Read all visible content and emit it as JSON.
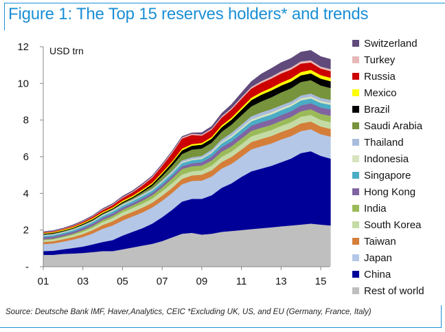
{
  "figure": {
    "title": "Figure 1: The Top 15 reserves holders* and trends",
    "source": "Source: Deutsche Bank IMF, Haver,Analytics, CEIC *Excluding UK, US, and EU (Germany, France, Italy)"
  },
  "chart_data": {
    "type": "area",
    "stacked": true,
    "title": "Figure 1: The Top 15 reserves holders* and trends",
    "ylabel": "USD trn",
    "xlabel": "",
    "ylim": [
      0,
      12
    ],
    "xlim": [
      2001,
      2015.5
    ],
    "y_ticks": [
      0,
      2,
      4,
      6,
      8,
      10,
      12
    ],
    "y_tick_labels": [
      "-",
      "2",
      "4",
      "6",
      "8",
      "10",
      "12"
    ],
    "x_ticks": [
      2001,
      2003,
      2005,
      2007,
      2009,
      2011,
      2013,
      2015
    ],
    "x_tick_labels": [
      "01",
      "03",
      "05",
      "07",
      "09",
      "11",
      "13",
      "15"
    ],
    "grid": false,
    "legend_position": "right",
    "x": [
      2001,
      2001.5,
      2002,
      2002.5,
      2003,
      2003.5,
      2004,
      2004.5,
      2005,
      2005.5,
      2006,
      2006.5,
      2007,
      2007.5,
      2008,
      2008.5,
      2009,
      2009.5,
      2010,
      2010.5,
      2011,
      2011.5,
      2012,
      2012.5,
      2013,
      2013.5,
      2014,
      2014.5,
      2015,
      2015.5
    ],
    "series": [
      {
        "name": "Rest of world",
        "color": "#bfbfbf",
        "values": [
          0.65,
          0.65,
          0.7,
          0.72,
          0.75,
          0.8,
          0.85,
          0.85,
          0.95,
          1.05,
          1.15,
          1.25,
          1.4,
          1.6,
          1.8,
          1.85,
          1.75,
          1.8,
          1.9,
          1.95,
          2.0,
          2.05,
          2.1,
          2.15,
          2.2,
          2.25,
          2.3,
          2.35,
          2.3,
          2.25
        ]
      },
      {
        "name": "China",
        "color": "#000099",
        "values": [
          0.2,
          0.22,
          0.25,
          0.3,
          0.35,
          0.42,
          0.5,
          0.6,
          0.75,
          0.85,
          0.95,
          1.1,
          1.3,
          1.5,
          1.75,
          1.85,
          1.95,
          2.1,
          2.4,
          2.6,
          2.9,
          3.15,
          3.25,
          3.35,
          3.5,
          3.65,
          3.9,
          3.95,
          3.75,
          3.65
        ]
      },
      {
        "name": "Japan",
        "color": "#b4c7e7",
        "values": [
          0.38,
          0.4,
          0.42,
          0.46,
          0.52,
          0.6,
          0.72,
          0.8,
          0.82,
          0.84,
          0.86,
          0.88,
          0.9,
          0.92,
          0.95,
          0.98,
          1.0,
          1.02,
          1.05,
          1.06,
          1.1,
          1.2,
          1.22,
          1.22,
          1.24,
          1.22,
          1.2,
          1.2,
          1.18,
          1.2
        ]
      },
      {
        "name": "Taiwan",
        "color": "#d47e3a",
        "values": [
          0.12,
          0.12,
          0.13,
          0.14,
          0.16,
          0.18,
          0.21,
          0.23,
          0.25,
          0.25,
          0.26,
          0.26,
          0.27,
          0.28,
          0.29,
          0.3,
          0.32,
          0.34,
          0.36,
          0.38,
          0.39,
          0.4,
          0.4,
          0.41,
          0.41,
          0.42,
          0.42,
          0.42,
          0.42,
          0.42
        ]
      },
      {
        "name": "South Korea",
        "color": "#c5dba6",
        "values": [
          0.1,
          0.1,
          0.11,
          0.12,
          0.13,
          0.14,
          0.16,
          0.18,
          0.2,
          0.21,
          0.22,
          0.23,
          0.25,
          0.26,
          0.24,
          0.22,
          0.24,
          0.26,
          0.28,
          0.29,
          0.3,
          0.31,
          0.32,
          0.32,
          0.33,
          0.34,
          0.36,
          0.36,
          0.36,
          0.36
        ]
      },
      {
        "name": "India",
        "color": "#9bbb59",
        "values": [
          0.04,
          0.045,
          0.05,
          0.06,
          0.08,
          0.09,
          0.11,
          0.12,
          0.13,
          0.14,
          0.16,
          0.18,
          0.2,
          0.25,
          0.3,
          0.28,
          0.26,
          0.27,
          0.28,
          0.29,
          0.3,
          0.3,
          0.29,
          0.29,
          0.28,
          0.29,
          0.3,
          0.31,
          0.33,
          0.35
        ]
      },
      {
        "name": "Hong Kong",
        "color": "#8064a2",
        "values": [
          0.11,
          0.11,
          0.11,
          0.11,
          0.12,
          0.12,
          0.12,
          0.12,
          0.12,
          0.12,
          0.13,
          0.13,
          0.14,
          0.14,
          0.15,
          0.16,
          0.18,
          0.22,
          0.25,
          0.26,
          0.27,
          0.28,
          0.3,
          0.3,
          0.31,
          0.31,
          0.32,
          0.33,
          0.35,
          0.35
        ]
      },
      {
        "name": "Singapore",
        "color": "#4bacc6",
        "values": [
          0.08,
          0.08,
          0.08,
          0.08,
          0.09,
          0.09,
          0.1,
          0.11,
          0.11,
          0.12,
          0.13,
          0.13,
          0.14,
          0.15,
          0.17,
          0.17,
          0.18,
          0.19,
          0.2,
          0.22,
          0.23,
          0.24,
          0.25,
          0.26,
          0.27,
          0.27,
          0.27,
          0.26,
          0.25,
          0.25
        ]
      },
      {
        "name": "Indonesia",
        "color": "#d7e4bd",
        "values": [
          0.03,
          0.03,
          0.03,
          0.03,
          0.03,
          0.03,
          0.04,
          0.04,
          0.04,
          0.04,
          0.04,
          0.04,
          0.05,
          0.05,
          0.06,
          0.06,
          0.06,
          0.07,
          0.08,
          0.09,
          0.1,
          0.11,
          0.11,
          0.11,
          0.1,
          0.1,
          0.11,
          0.11,
          0.11,
          0.11
        ]
      },
      {
        "name": "Thailand",
        "color": "#a9bcdc",
        "values": [
          0.03,
          0.03,
          0.03,
          0.04,
          0.04,
          0.04,
          0.04,
          0.05,
          0.05,
          0.05,
          0.06,
          0.06,
          0.07,
          0.08,
          0.09,
          0.1,
          0.11,
          0.12,
          0.14,
          0.16,
          0.17,
          0.17,
          0.18,
          0.18,
          0.17,
          0.16,
          0.16,
          0.16,
          0.16,
          0.16
        ]
      },
      {
        "name": "Saudi Arabia",
        "color": "#77933c",
        "values": [
          0.02,
          0.02,
          0.02,
          0.02,
          0.02,
          0.03,
          0.03,
          0.03,
          0.05,
          0.07,
          0.1,
          0.15,
          0.22,
          0.28,
          0.35,
          0.42,
          0.4,
          0.38,
          0.42,
          0.45,
          0.5,
          0.54,
          0.6,
          0.65,
          0.7,
          0.72,
          0.74,
          0.73,
          0.68,
          0.65
        ]
      },
      {
        "name": "Brazil",
        "color": "#000000",
        "values": [
          0.04,
          0.04,
          0.04,
          0.04,
          0.05,
          0.05,
          0.05,
          0.05,
          0.06,
          0.06,
          0.08,
          0.1,
          0.13,
          0.16,
          0.2,
          0.21,
          0.21,
          0.22,
          0.25,
          0.27,
          0.3,
          0.34,
          0.36,
          0.37,
          0.37,
          0.37,
          0.36,
          0.37,
          0.37,
          0.37
        ]
      },
      {
        "name": "Mexico",
        "color": "#ffff00",
        "values": [
          0.04,
          0.04,
          0.05,
          0.05,
          0.05,
          0.06,
          0.06,
          0.06,
          0.07,
          0.07,
          0.07,
          0.07,
          0.08,
          0.08,
          0.09,
          0.09,
          0.09,
          0.09,
          0.1,
          0.11,
          0.12,
          0.13,
          0.14,
          0.15,
          0.16,
          0.17,
          0.18,
          0.19,
          0.19,
          0.19
        ]
      },
      {
        "name": "Russia",
        "color": "#cc0000",
        "values": [
          0.03,
          0.04,
          0.04,
          0.05,
          0.06,
          0.08,
          0.1,
          0.12,
          0.15,
          0.18,
          0.22,
          0.28,
          0.35,
          0.45,
          0.55,
          0.5,
          0.4,
          0.4,
          0.42,
          0.45,
          0.48,
          0.5,
          0.5,
          0.5,
          0.5,
          0.48,
          0.46,
          0.4,
          0.36,
          0.36
        ]
      },
      {
        "name": "Turkey",
        "color": "#e6b9b8",
        "values": [
          0.02,
          0.02,
          0.02,
          0.03,
          0.03,
          0.03,
          0.04,
          0.04,
          0.05,
          0.05,
          0.06,
          0.06,
          0.07,
          0.07,
          0.07,
          0.07,
          0.07,
          0.07,
          0.08,
          0.08,
          0.09,
          0.09,
          0.1,
          0.11,
          0.12,
          0.12,
          0.12,
          0.12,
          0.11,
          0.11
        ]
      },
      {
        "name": "Switzerland",
        "color": "#604a7b",
        "values": [
          0.03,
          0.03,
          0.03,
          0.04,
          0.04,
          0.04,
          0.05,
          0.05,
          0.05,
          0.05,
          0.05,
          0.05,
          0.05,
          0.05,
          0.05,
          0.05,
          0.1,
          0.12,
          0.16,
          0.2,
          0.25,
          0.3,
          0.4,
          0.45,
          0.48,
          0.5,
          0.52,
          0.55,
          0.55,
          0.54
        ]
      }
    ]
  },
  "legend": {
    "items": [
      {
        "label": "Switzerland",
        "color": "#604a7b"
      },
      {
        "label": "Turkey",
        "color": "#e6b9b8"
      },
      {
        "label": "Russia",
        "color": "#cc0000"
      },
      {
        "label": "Mexico",
        "color": "#ffff00"
      },
      {
        "label": "Brazil",
        "color": "#000000"
      },
      {
        "label": "Saudi Arabia",
        "color": "#77933c"
      },
      {
        "label": "Thailand",
        "color": "#a9bcdc"
      },
      {
        "label": "Indonesia",
        "color": "#d7e4bd"
      },
      {
        "label": "Singapore",
        "color": "#4bacc6"
      },
      {
        "label": "Hong Kong",
        "color": "#8064a2"
      },
      {
        "label": "India",
        "color": "#9bbb59"
      },
      {
        "label": "South Korea",
        "color": "#c5dba6"
      },
      {
        "label": "Taiwan",
        "color": "#d47e3a"
      },
      {
        "label": "Japan",
        "color": "#b4c7e7"
      },
      {
        "label": "China",
        "color": "#000099"
      },
      {
        "label": "Rest of world",
        "color": "#bfbfbf"
      }
    ]
  }
}
